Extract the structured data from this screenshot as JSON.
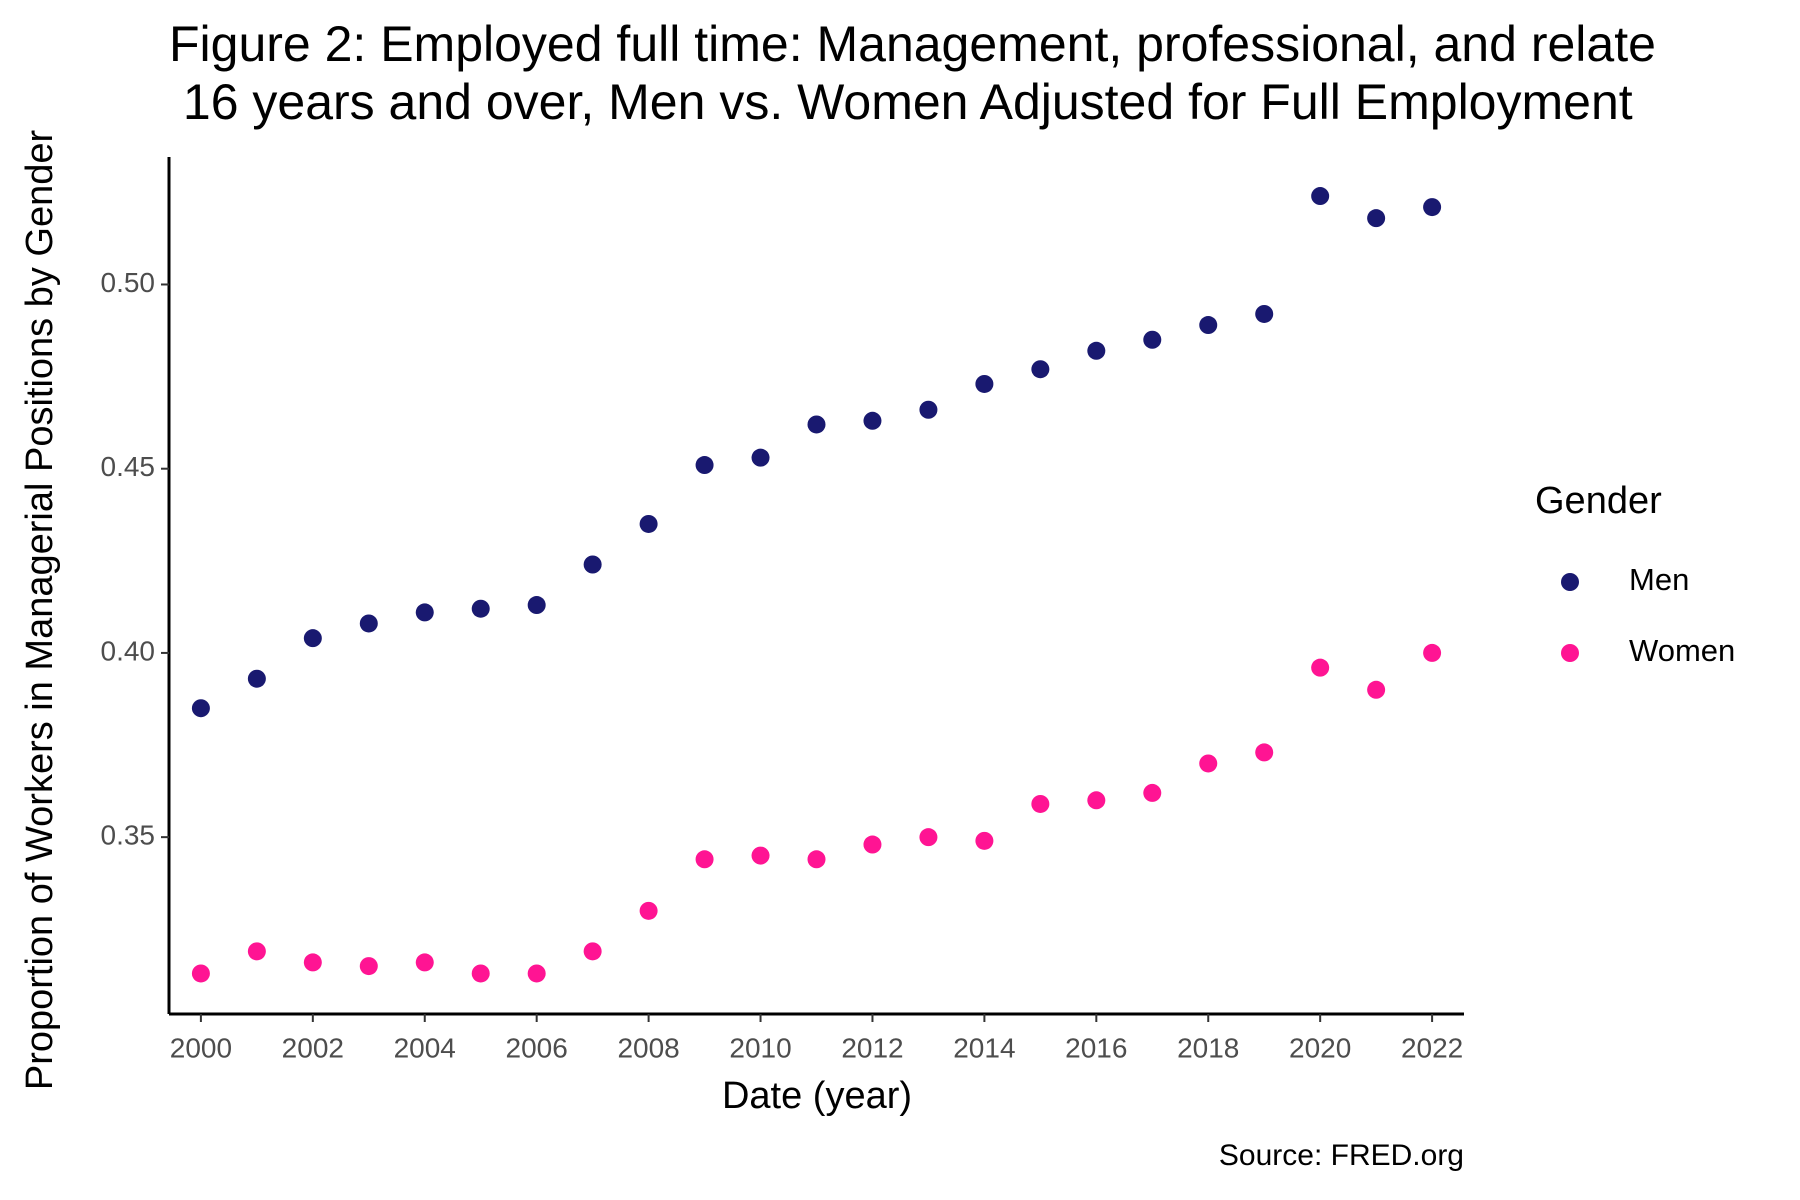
{
  "chart_data": {
    "type": "scatter",
    "title": [
      "Figure 2: Employed full time: Management, professional, and relate",
      " 16 years and over, Men vs. Women Adjusted for Full Employment"
    ],
    "x_label": "Date (year)",
    "y_label": "Proportion of Workers in Managerial Positions by Gender",
    "caption": "Source: FRED.org",
    "legend_title": "Gender",
    "legend_position": "right",
    "grid": false,
    "x": [
      2000,
      2001,
      2002,
      2003,
      2004,
      2005,
      2006,
      2007,
      2008,
      2009,
      2010,
      2011,
      2012,
      2013,
      2014,
      2015,
      2016,
      2017,
      2018,
      2019,
      2020,
      2021,
      2022
    ],
    "series": [
      {
        "name": "Men",
        "color": "#191970",
        "values": [
          0.385,
          0.393,
          0.404,
          0.408,
          0.411,
          0.412,
          0.413,
          0.424,
          0.435,
          0.451,
          0.453,
          0.462,
          0.463,
          0.466,
          0.473,
          0.477,
          0.482,
          0.485,
          0.489,
          0.492,
          0.524,
          0.518,
          0.521
        ]
      },
      {
        "name": "Women",
        "color": "#ff1493",
        "values": [
          0.313,
          0.319,
          0.316,
          0.315,
          0.316,
          0.313,
          0.313,
          0.319,
          0.33,
          0.344,
          0.345,
          0.344,
          0.348,
          0.35,
          0.349,
          0.359,
          0.36,
          0.362,
          0.37,
          0.373,
          0.396,
          0.39,
          0.4
        ]
      }
    ],
    "xlim": [
      1999.43,
      2022.57
    ],
    "xticks": [
      2000,
      2002,
      2004,
      2006,
      2008,
      2010,
      2012,
      2014,
      2016,
      2018,
      2020,
      2022
    ],
    "ylim": [
      0.302,
      0.5346
    ],
    "yticks": [
      {
        "value": 0.35,
        "label": "0.35"
      },
      {
        "value": 0.4,
        "label": "0.40"
      },
      {
        "value": 0.45,
        "label": "0.45"
      },
      {
        "value": 0.5,
        "label": "0.50"
      }
    ]
  }
}
